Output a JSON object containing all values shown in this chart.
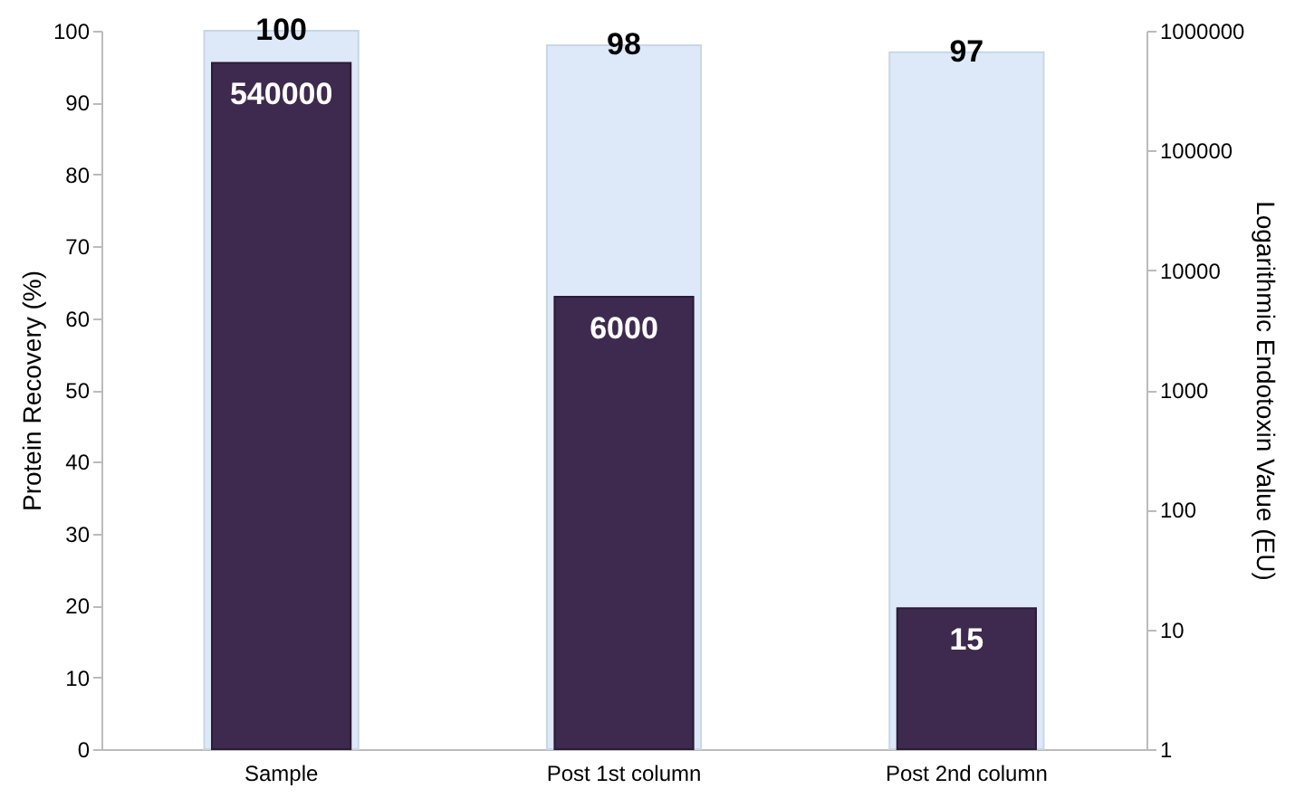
{
  "chart_data": {
    "type": "bar",
    "ylabel": "Protein Recovery (%)",
    "y2label": "Logarithmic Endotoxin Value (EU)",
    "categories": [
      "Sample",
      "Post 1st column",
      "Post 2nd column"
    ],
    "series": [
      {
        "color": "#dde9f8",
        "values": [
          100,
          98,
          97
        ]
      },
      {
        "color": "#3e2a4e",
        "values": [
          540000,
          6000,
          15
        ],
        "axis": "y2"
      }
    ],
    "ylim": [
      0,
      100
    ],
    "yticks": [
      0,
      10,
      20,
      30,
      40,
      50,
      60,
      70,
      80,
      90,
      100
    ],
    "y2lim": [
      1,
      1000000
    ],
    "y2ticks": [
      1,
      10,
      100,
      1000,
      10000,
      100000,
      1000000
    ],
    "log": "y2",
    "grid": false,
    "data_labels": true
  }
}
